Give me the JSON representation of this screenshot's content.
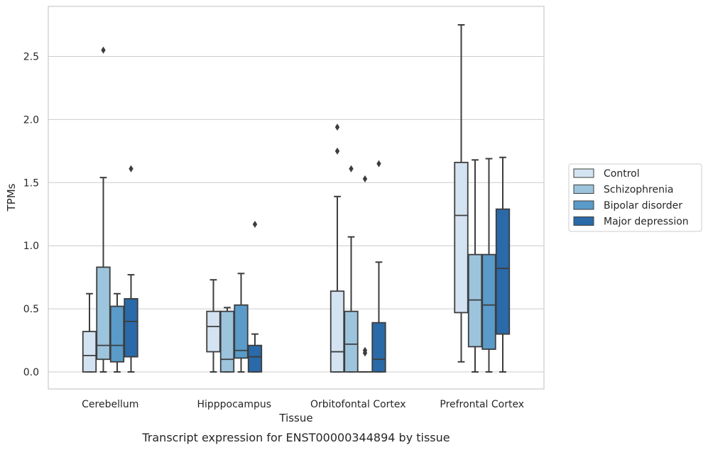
{
  "chart_data": {
    "type": "box",
    "title": "",
    "caption": "Transcript expression for ENST00000344894 by tissue",
    "xlabel": "Tissue",
    "ylabel": "TPMs",
    "ylim": [
      -0.13,
      2.88
    ],
    "yticks": [
      0.0,
      0.5,
      1.0,
      1.5,
      2.0,
      2.5
    ],
    "ytick_labels": [
      "0.0",
      "0.5",
      "1.0",
      "1.5",
      "2.0",
      "2.5"
    ],
    "grid": "horizontal",
    "legend_position": "right",
    "categories": [
      "Cerebellum",
      "Hipppocampus",
      "Orbitofontal Cortex",
      "Prefrontal Cortex"
    ],
    "series": [
      {
        "name": "Control",
        "color": "#d4e3f1",
        "boxes": [
          {
            "whislo": 0.0,
            "q1": 0.0,
            "med": 0.13,
            "q3": 0.32,
            "whishi": 0.62,
            "fliers": []
          },
          {
            "whislo": 0.0,
            "q1": 0.16,
            "med": 0.36,
            "q3": 0.48,
            "whishi": 0.73,
            "fliers": []
          },
          {
            "whislo": 0.0,
            "q1": 0.0,
            "med": 0.16,
            "q3": 0.64,
            "whishi": 1.39,
            "fliers": [
              1.94,
              1.75
            ]
          },
          {
            "whislo": 0.08,
            "q1": 0.47,
            "med": 1.24,
            "q3": 1.66,
            "whishi": 2.75,
            "fliers": []
          }
        ]
      },
      {
        "name": "Schizophrenia",
        "color": "#9cc4dd",
        "boxes": [
          {
            "whislo": 0.0,
            "q1": 0.1,
            "med": 0.21,
            "q3": 0.83,
            "whishi": 1.54,
            "fliers": [
              2.55
            ]
          },
          {
            "whislo": 0.0,
            "q1": 0.0,
            "med": 0.1,
            "q3": 0.48,
            "whishi": 0.51,
            "fliers": []
          },
          {
            "whislo": 0.0,
            "q1": 0.0,
            "med": 0.22,
            "q3": 0.48,
            "whishi": 1.07,
            "fliers": [
              1.61
            ]
          },
          {
            "whislo": 0.0,
            "q1": 0.2,
            "med": 0.57,
            "q3": 0.93,
            "whishi": 1.68,
            "fliers": []
          }
        ]
      },
      {
        "name": "Bipolar disorder",
        "color": "#5a9bc9",
        "boxes": [
          {
            "whislo": 0.0,
            "q1": 0.08,
            "med": 0.21,
            "q3": 0.52,
            "whishi": 0.62,
            "fliers": []
          },
          {
            "whislo": 0.0,
            "q1": 0.11,
            "med": 0.17,
            "q3": 0.53,
            "whishi": 0.78,
            "fliers": []
          },
          {
            "whislo": 0.0,
            "q1": 0.0,
            "med": 0.0,
            "q3": 0.0,
            "whishi": 0.0,
            "fliers": [
              1.53,
              0.17,
              0.15
            ]
          },
          {
            "whislo": 0.0,
            "q1": 0.18,
            "med": 0.53,
            "q3": 0.93,
            "whishi": 1.69,
            "fliers": []
          }
        ]
      },
      {
        "name": "Major depression",
        "color": "#2a6aa8",
        "boxes": [
          {
            "whislo": 0.0,
            "q1": 0.12,
            "med": 0.4,
            "q3": 0.58,
            "whishi": 0.77,
            "fliers": [
              1.61
            ]
          },
          {
            "whislo": 0.0,
            "q1": 0.0,
            "med": 0.12,
            "q3": 0.21,
            "whishi": 0.3,
            "fliers": [
              1.17
            ]
          },
          {
            "whislo": 0.0,
            "q1": 0.0,
            "med": 0.1,
            "q3": 0.39,
            "whishi": 0.87,
            "fliers": [
              1.65
            ]
          },
          {
            "whislo": 0.0,
            "q1": 0.3,
            "med": 0.82,
            "q3": 1.29,
            "whishi": 1.7,
            "fliers": []
          }
        ]
      }
    ],
    "colors": {
      "grid": "#cccccc",
      "frame": "#cccccc",
      "line": "#3d3d3d",
      "legend_border": "#cccccc"
    }
  }
}
